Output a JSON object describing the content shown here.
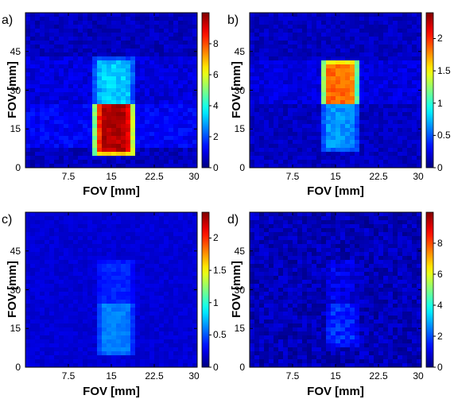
{
  "chart_data": [
    {
      "type": "heatmap",
      "panel_label": "a)",
      "xlabel": "FOV [mm]",
      "ylabel": "FOV [mm]",
      "xlim": [
        0,
        30
      ],
      "ylim": [
        0,
        60
      ],
      "xticks": [
        "7.5",
        "15",
        "22.5",
        "30"
      ],
      "yticks": [
        "0",
        "15",
        "30",
        "45"
      ],
      "colorbar": {
        "range": [
          0,
          10
        ],
        "ticks": [
          "0",
          "2",
          "4",
          "6",
          "8"
        ]
      },
      "background_level": 0.6,
      "bands": [
        {
          "y": [
            8,
            24
          ],
          "level": 1.2
        },
        {
          "y": [
            24,
            43
          ],
          "level": 0.9
        }
      ],
      "object": {
        "x": [
          12,
          19
        ],
        "y": [
          4.5,
          42.5
        ]
      },
      "object_regions": [
        {
          "y": [
            4.5,
            24
          ],
          "level": 9.5
        },
        {
          "y": [
            24,
            42.5
          ],
          "level": 3.3
        }
      ],
      "noise": 0.35
    },
    {
      "type": "heatmap",
      "panel_label": "b)",
      "xlabel": "FOV [mm]",
      "ylabel": "FOV [mm]",
      "xlim": [
        0,
        30
      ],
      "ylim": [
        0,
        60
      ],
      "xticks": [
        "7.5",
        "15",
        "22.5",
        "30"
      ],
      "yticks": [
        "0",
        "15",
        "30",
        "45"
      ],
      "colorbar": {
        "range": [
          0,
          2.4
        ],
        "ticks": [
          "0",
          "0.5",
          "1",
          "1.5",
          "2"
        ]
      },
      "background_level": 0.15,
      "bands": [
        {
          "y": [
            24,
            42
          ],
          "level": 0.22
        }
      ],
      "object": {
        "x": [
          12.5,
          19
        ],
        "y": [
          6,
          42
        ]
      },
      "object_regions": [
        {
          "y": [
            6,
            24
          ],
          "level": 0.65
        },
        {
          "y": [
            24,
            42
          ],
          "level": 1.85
        }
      ],
      "noise": 0.08
    },
    {
      "type": "heatmap",
      "panel_label": "c)",
      "xlabel": "FOV [mm]",
      "ylabel": "FOV [mm]",
      "xlim": [
        0,
        30
      ],
      "ylim": [
        0,
        60
      ],
      "xticks": [
        "7.5",
        "15",
        "22.5",
        "30"
      ],
      "yticks": [
        "0",
        "15",
        "30",
        "45"
      ],
      "colorbar": {
        "range": [
          0,
          2.4
        ],
        "ticks": [
          "0",
          "0.5",
          "1",
          "1.5",
          "2"
        ]
      },
      "background_level": 0.2,
      "bands": [],
      "object": {
        "x": [
          12.5,
          19
        ],
        "y": [
          4,
          42
        ]
      },
      "object_regions": [
        {
          "y": [
            4,
            24
          ],
          "level": 0.6
        },
        {
          "y": [
            24,
            42
          ],
          "level": 0.38
        }
      ],
      "noise": 0.05
    },
    {
      "type": "heatmap",
      "panel_label": "d)",
      "xlabel": "FOV [mm]",
      "ylabel": "FOV [mm]",
      "xlim": [
        0,
        30
      ],
      "ylim": [
        0,
        60
      ],
      "xticks": [
        "7.5",
        "15",
        "22.5",
        "30"
      ],
      "yticks": [
        "0",
        "15",
        "30",
        "45"
      ],
      "colorbar": {
        "range": [
          0,
          10
        ],
        "ticks": [
          "0",
          "2",
          "4",
          "6",
          "8"
        ]
      },
      "background_level": 0.55,
      "bands": [],
      "object": {
        "x": [
          13,
          19
        ],
        "y": [
          8,
          42
        ]
      },
      "object_regions": [
        {
          "y": [
            8,
            24
          ],
          "level": 1.6
        },
        {
          "y": [
            24,
            42
          ],
          "level": 1.0
        }
      ],
      "noise": 0.45
    }
  ],
  "colormap": "jet"
}
